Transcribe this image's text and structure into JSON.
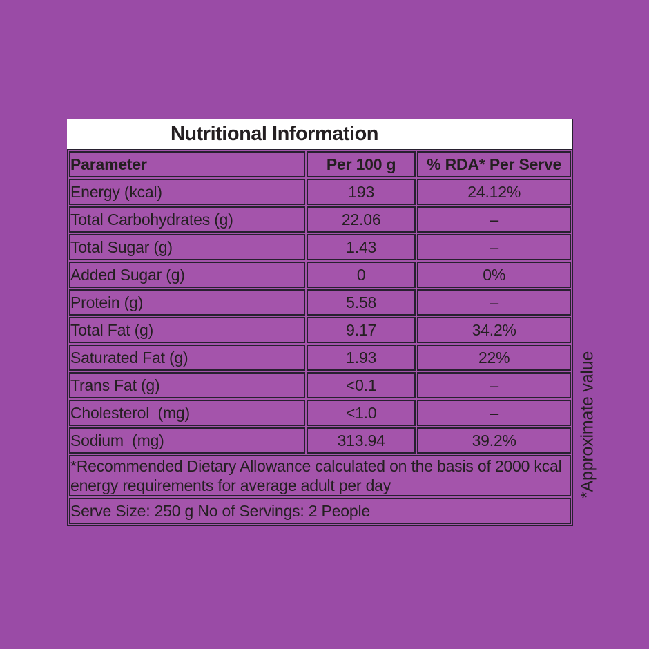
{
  "title": "Nutritional Information",
  "table": {
    "headers": {
      "parameter": "Parameter",
      "per100g": "Per 100 g",
      "rda": "% RDA* Per Serve"
    },
    "rows": [
      {
        "parameter": "Energy (kcal)",
        "per100g": "193",
        "rda": "24.12%"
      },
      {
        "parameter": "Total Carbohydrates (g)",
        "per100g": "22.06",
        "rda": "–"
      },
      {
        "parameter": "Total Sugar (g)",
        "per100g": "1.43",
        "rda": "–"
      },
      {
        "parameter": "Added Sugar (g)",
        "per100g": "0",
        "rda": "0%"
      },
      {
        "parameter": "Protein (g)",
        "per100g": "5.58",
        "rda": "–"
      },
      {
        "parameter": "Total Fat (g)",
        "per100g": "9.17",
        "rda": "34.2%"
      },
      {
        "parameter": "Saturated Fat (g)",
        "per100g": "1.93",
        "rda": "22%"
      },
      {
        "parameter": "Trans Fat (g)",
        "per100g": "<0.1",
        "rda": "–"
      },
      {
        "parameter": "Cholesterol  (mg)",
        "per100g": "<1.0",
        "rda": "–"
      },
      {
        "parameter": "Sodium  (mg)",
        "per100g": "313.94",
        "rda": "39.2%"
      }
    ],
    "rda_footnote": "*Recommended Dietary Allowance calculated on the basis of 2000 kcal energy requirements for average adult per day",
    "serve_info": "Serve Size: 250 g No of Servings: 2 People"
  },
  "side_note": "*Approximate value",
  "colors": {
    "background": "#9a4ba6",
    "table_fill": "#a454ab",
    "border": "#27202f",
    "text": "#241f21",
    "title_background": "#ffffff"
  }
}
